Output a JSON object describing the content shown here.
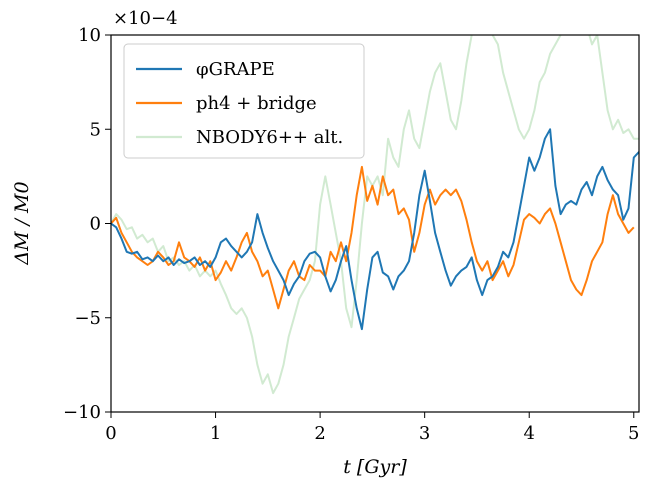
{
  "chart_data": {
    "type": "line",
    "xlabel": "t [Gyr]",
    "ylabel": "ΔM / M0",
    "y_multiplier_label": "×10−4",
    "xlim": [
      0,
      5.05
    ],
    "ylim": [
      -10,
      10
    ],
    "x_ticks": [
      0,
      1,
      2,
      3,
      4,
      5
    ],
    "y_ticks": [
      -10,
      -5,
      0,
      5,
      10
    ],
    "grid": false,
    "legend_position": "top-left",
    "series": [
      {
        "name": "φGRAPE",
        "color": "#1f77b4",
        "x": [
          0,
          0.05,
          0.1,
          0.15,
          0.2,
          0.25,
          0.3,
          0.35,
          0.4,
          0.45,
          0.5,
          0.55,
          0.6,
          0.65,
          0.7,
          0.75,
          0.8,
          0.85,
          0.9,
          0.95,
          1.0,
          1.05,
          1.1,
          1.15,
          1.2,
          1.25,
          1.3,
          1.35,
          1.4,
          1.45,
          1.5,
          1.55,
          1.6,
          1.65,
          1.7,
          1.75,
          1.8,
          1.85,
          1.9,
          1.95,
          2.0,
          2.05,
          2.1,
          2.15,
          2.2,
          2.25,
          2.3,
          2.35,
          2.4,
          2.45,
          2.5,
          2.55,
          2.6,
          2.65,
          2.7,
          2.75,
          2.8,
          2.85,
          2.9,
          2.95,
          3.0,
          3.05,
          3.1,
          3.15,
          3.2,
          3.25,
          3.3,
          3.35,
          3.4,
          3.45,
          3.5,
          3.55,
          3.6,
          3.65,
          3.7,
          3.75,
          3.8,
          3.85,
          3.9,
          3.95,
          4.0,
          4.05,
          4.1,
          4.15,
          4.2,
          4.25,
          4.3,
          4.35,
          4.4,
          4.45,
          4.5,
          4.55,
          4.6,
          4.65,
          4.7,
          4.75,
          4.8,
          4.85,
          4.9,
          4.95,
          5.0,
          5.05
        ],
        "y": [
          0,
          -0.2,
          -0.8,
          -1.5,
          -1.6,
          -1.5,
          -1.9,
          -1.8,
          -2.0,
          -1.7,
          -2.0,
          -1.8,
          -2.2,
          -1.9,
          -2.1,
          -2.0,
          -1.8,
          -2.2,
          -2.0,
          -2.3,
          -1.8,
          -1.0,
          -0.8,
          -1.2,
          -1.5,
          -1.8,
          -1.5,
          -1.0,
          0.5,
          -0.5,
          -1.3,
          -2.0,
          -2.5,
          -3.0,
          -3.8,
          -3.2,
          -2.8,
          -2.0,
          -1.6,
          -1.5,
          -1.8,
          -2.8,
          -3.6,
          -3.0,
          -2.0,
          -1.2,
          -3.0,
          -4.5,
          -5.6,
          -3.5,
          -1.8,
          -1.5,
          -2.6,
          -2.8,
          -3.5,
          -2.8,
          -2.5,
          -2.0,
          -0.5,
          1.5,
          2.8,
          1.2,
          -0.5,
          -1.5,
          -2.5,
          -3.3,
          -2.8,
          -2.5,
          -2.3,
          -1.8,
          -3.0,
          -3.8,
          -3.0,
          -2.8,
          -2.3,
          -1.5,
          -1.8,
          -1.0,
          0.5,
          2.0,
          3.5,
          2.8,
          3.5,
          4.5,
          5.0,
          2.0,
          0.5,
          1.0,
          1.2,
          1.0,
          1.8,
          2.2,
          1.5,
          2.5,
          3.0,
          2.3,
          1.8,
          1.5,
          0.2,
          0.8,
          3.5,
          3.8
        ]
      },
      {
        "name": "ph4 + bridge",
        "color": "#ff7f0e",
        "x": [
          0,
          0.05,
          0.1,
          0.15,
          0.2,
          0.25,
          0.3,
          0.35,
          0.4,
          0.45,
          0.5,
          0.55,
          0.6,
          0.65,
          0.7,
          0.75,
          0.8,
          0.85,
          0.9,
          0.95,
          1.0,
          1.05,
          1.1,
          1.15,
          1.2,
          1.25,
          1.3,
          1.35,
          1.4,
          1.45,
          1.5,
          1.55,
          1.6,
          1.65,
          1.7,
          1.75,
          1.8,
          1.85,
          1.9,
          1.95,
          2.0,
          2.05,
          2.1,
          2.15,
          2.2,
          2.25,
          2.3,
          2.35,
          2.4,
          2.45,
          2.5,
          2.55,
          2.6,
          2.65,
          2.7,
          2.75,
          2.8,
          2.85,
          2.9,
          2.95,
          3.0,
          3.05,
          3.1,
          3.15,
          3.2,
          3.25,
          3.3,
          3.35,
          3.4,
          3.45,
          3.5,
          3.55,
          3.6,
          3.65,
          3.7,
          3.75,
          3.8,
          3.85,
          3.9,
          3.95,
          4.0,
          4.05,
          4.1,
          4.15,
          4.2,
          4.25,
          4.3,
          4.35,
          4.4,
          4.45,
          4.5,
          4.55,
          4.6,
          4.65,
          4.7,
          4.75,
          4.8,
          4.85,
          4.9,
          4.95,
          5.0
        ],
        "y": [
          0,
          0.3,
          -0.5,
          -1.0,
          -1.5,
          -1.8,
          -2.0,
          -2.2,
          -2.0,
          -1.5,
          -1.8,
          -2.2,
          -2.0,
          -1.0,
          -1.8,
          -2.0,
          -2.3,
          -1.8,
          -2.5,
          -2.0,
          -3.0,
          -2.6,
          -2.0,
          -2.5,
          -1.8,
          -1.0,
          -0.5,
          -1.5,
          -2.0,
          -2.8,
          -2.5,
          -3.5,
          -4.5,
          -3.5,
          -2.5,
          -2.0,
          -2.8,
          -3.0,
          -2.2,
          -2.5,
          -2.5,
          -2.8,
          -1.5,
          -2.0,
          -1.0,
          -2.0,
          -0.5,
          1.5,
          3.0,
          1.2,
          2.0,
          1.0,
          2.5,
          1.5,
          1.8,
          0.5,
          0.8,
          0.2,
          -1.5,
          -0.5,
          1.0,
          1.8,
          1.0,
          1.5,
          1.8,
          1.5,
          1.8,
          1.2,
          0.2,
          -1.0,
          -2.0,
          -2.5,
          -2.0,
          -3.0,
          -2.5,
          -2.0,
          -2.8,
          -2.2,
          -1.0,
          0.2,
          0.5,
          0.3,
          0.0,
          0.5,
          0.8,
          0.0,
          -1.0,
          -2.0,
          -3.0,
          -3.5,
          -3.8,
          -3.0,
          -2.0,
          -1.5,
          -1.0,
          0.5,
          1.5,
          0.5,
          0.0,
          -0.5,
          -0.2
        ]
      },
      {
        "name": "NBODY6++ alt.",
        "color": "#2ca02c",
        "opacity": 0.22,
        "x": [
          0,
          0.05,
          0.1,
          0.15,
          0.2,
          0.25,
          0.3,
          0.35,
          0.4,
          0.45,
          0.5,
          0.55,
          0.6,
          0.65,
          0.7,
          0.75,
          0.8,
          0.85,
          0.9,
          0.95,
          1.0,
          1.05,
          1.1,
          1.15,
          1.2,
          1.25,
          1.3,
          1.35,
          1.4,
          1.45,
          1.5,
          1.55,
          1.6,
          1.65,
          1.7,
          1.75,
          1.8,
          1.85,
          1.9,
          1.95,
          2.0,
          2.05,
          2.1,
          2.15,
          2.2,
          2.25,
          2.3,
          2.35,
          2.4,
          2.45,
          2.5,
          2.55,
          2.6,
          2.65,
          2.7,
          2.75,
          2.8,
          2.85,
          2.9,
          2.95,
          3.0,
          3.05,
          3.1,
          3.15,
          3.2,
          3.25,
          3.3,
          3.35,
          3.4,
          3.45,
          3.5,
          3.55,
          3.6,
          3.65,
          3.7,
          3.75,
          3.8,
          3.85,
          3.9,
          3.95,
          4.0,
          4.05,
          4.1,
          4.15,
          4.2,
          4.25,
          4.3,
          4.35,
          4.4,
          4.45,
          4.5,
          4.55,
          4.6,
          4.65,
          4.7,
          4.75,
          4.8,
          4.85,
          4.9,
          4.95,
          5.0,
          5.05
        ],
        "y": [
          0,
          0.5,
          0.2,
          -0.3,
          -0.2,
          -0.8,
          -0.6,
          -1.0,
          -0.8,
          -1.5,
          -1.2,
          -2.0,
          -1.8,
          -2.2,
          -2.0,
          -2.5,
          -2.2,
          -2.8,
          -2.5,
          -2.8,
          -2.5,
          -3.2,
          -3.8,
          -4.5,
          -4.8,
          -4.5,
          -5.0,
          -6.0,
          -7.5,
          -8.5,
          -8.0,
          -9.0,
          -8.5,
          -7.5,
          -6.0,
          -5.0,
          -4.0,
          -3.5,
          -3.0,
          -2.0,
          1.0,
          2.5,
          1.0,
          -0.5,
          -2.0,
          -4.5,
          -5.5,
          -3.0,
          0.0,
          2.5,
          2.0,
          2.5,
          1.5,
          4.5,
          3.5,
          3.0,
          5.0,
          6.0,
          4.5,
          4.0,
          5.5,
          7.0,
          8.0,
          8.5,
          7.0,
          5.5,
          5.0,
          6.5,
          8.5,
          10.0,
          10.2,
          11.0,
          11.5,
          10.0,
          9.5,
          8.0,
          7.0,
          6.0,
          5.0,
          4.5,
          5.0,
          6.0,
          7.5,
          8.0,
          9.0,
          9.5,
          10.0,
          10.5,
          11.0,
          11.5,
          12.0,
          10.5,
          9.5,
          10.0,
          8.0,
          6.0,
          5.0,
          5.5,
          4.8,
          5.0,
          4.5,
          4.5
        ]
      }
    ]
  }
}
